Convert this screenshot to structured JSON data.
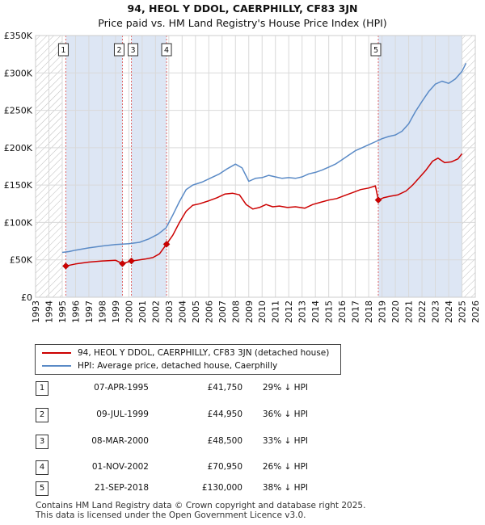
{
  "chart_data": {
    "type": "line",
    "title": "94, HEOL Y DDOL, CAERPHILLY, CF83 3JN",
    "subtitle": "Price paid vs. HM Land Registry's House Price Index (HPI)",
    "xlim": [
      1993,
      2026
    ],
    "ylim": [
      0,
      350000
    ],
    "x_ticks": [
      "1993",
      "1994",
      "1995",
      "1996",
      "1997",
      "1998",
      "1999",
      "2000",
      "2001",
      "2002",
      "2003",
      "2004",
      "2005",
      "2006",
      "2007",
      "2008",
      "2009",
      "2010",
      "2011",
      "2012",
      "2013",
      "2014",
      "2015",
      "2016",
      "2017",
      "2018",
      "2019",
      "2020",
      "2021",
      "2022",
      "2023",
      "2024",
      "2025",
      "2026"
    ],
    "y_ticks": [
      {
        "value": 0,
        "label": "£0"
      },
      {
        "value": 50000,
        "label": "£50K"
      },
      {
        "value": 100000,
        "label": "£100K"
      },
      {
        "value": 150000,
        "label": "£150K"
      },
      {
        "value": 200000,
        "label": "£200K"
      },
      {
        "value": 250000,
        "label": "£250K"
      },
      {
        "value": 300000,
        "label": "£300K"
      },
      {
        "value": 350000,
        "label": "£350K"
      }
    ],
    "grid": true,
    "colors": {
      "property": "#cc0000",
      "hpi": "#5a8ac6",
      "shade": "#dde6f4",
      "vline": "#e06666",
      "hatch": "#bbbbbb"
    },
    "hatched_ranges": [
      [
        1993,
        1995.0
      ],
      [
        2025.0,
        2026
      ]
    ],
    "shaded_ranges": [
      [
        1995.27,
        1999.52
      ],
      [
        2000.19,
        2002.83
      ],
      [
        2018.72,
        2025.0
      ]
    ],
    "series": [
      {
        "name": "94, HEOL Y DDOL, CAERPHILLY, CF83 3JN (detached house)",
        "color": "#cc0000",
        "points": [
          [
            1995.27,
            41750
          ],
          [
            1995.6,
            43000
          ],
          [
            1996.0,
            44500
          ],
          [
            1997.0,
            47000
          ],
          [
            1998.0,
            48500
          ],
          [
            1999.0,
            49500
          ],
          [
            1999.52,
            44950
          ],
          [
            1999.9,
            47000
          ],
          [
            2000.19,
            48500
          ],
          [
            2000.6,
            49500
          ],
          [
            2001.2,
            51000
          ],
          [
            2001.8,
            53000
          ],
          [
            2002.3,
            58000
          ],
          [
            2002.83,
            70950
          ],
          [
            2003.3,
            83000
          ],
          [
            2003.8,
            100000
          ],
          [
            2004.3,
            115000
          ],
          [
            2004.8,
            123000
          ],
          [
            2005.3,
            125000
          ],
          [
            2006.0,
            129000
          ],
          [
            2006.6,
            133000
          ],
          [
            2007.2,
            138000
          ],
          [
            2007.8,
            139000
          ],
          [
            2008.3,
            137000
          ],
          [
            2008.8,
            124000
          ],
          [
            2009.3,
            118000
          ],
          [
            2009.8,
            120000
          ],
          [
            2010.3,
            124000
          ],
          [
            2010.8,
            121000
          ],
          [
            2011.3,
            122000
          ],
          [
            2011.9,
            120000
          ],
          [
            2012.5,
            121000
          ],
          [
            2013.2,
            119000
          ],
          [
            2013.8,
            124000
          ],
          [
            2014.4,
            127000
          ],
          [
            2015.0,
            130000
          ],
          [
            2015.6,
            132000
          ],
          [
            2016.2,
            136000
          ],
          [
            2016.8,
            140000
          ],
          [
            2017.4,
            144000
          ],
          [
            2018.0,
            146000
          ],
          [
            2018.5,
            149000
          ],
          [
            2018.72,
            130000
          ],
          [
            2019.1,
            133000
          ],
          [
            2019.6,
            135000
          ],
          [
            2020.2,
            137000
          ],
          [
            2020.8,
            142000
          ],
          [
            2021.3,
            150000
          ],
          [
            2021.8,
            160000
          ],
          [
            2022.3,
            170000
          ],
          [
            2022.8,
            182000
          ],
          [
            2023.2,
            186000
          ],
          [
            2023.7,
            180000
          ],
          [
            2024.2,
            181000
          ],
          [
            2024.7,
            185000
          ],
          [
            2025.0,
            192000
          ]
        ]
      },
      {
        "name": "HPI: Average price, detached house, Caerphilly",
        "color": "#5a8ac6",
        "points": [
          [
            1995.0,
            60000
          ],
          [
            1995.5,
            61000
          ],
          [
            1996.0,
            63000
          ],
          [
            1997.0,
            66000
          ],
          [
            1998.0,
            68500
          ],
          [
            1999.0,
            70500
          ],
          [
            2000.0,
            71500
          ],
          [
            2000.8,
            73500
          ],
          [
            2001.5,
            78000
          ],
          [
            2002.2,
            84500
          ],
          [
            2002.8,
            93000
          ],
          [
            2003.3,
            110000
          ],
          [
            2003.8,
            128000
          ],
          [
            2004.3,
            144000
          ],
          [
            2004.8,
            150000
          ],
          [
            2005.5,
            154000
          ],
          [
            2006.2,
            160000
          ],
          [
            2006.8,
            165000
          ],
          [
            2007.4,
            172000
          ],
          [
            2008.0,
            178000
          ],
          [
            2008.5,
            173000
          ],
          [
            2009.0,
            155000
          ],
          [
            2009.5,
            159000
          ],
          [
            2010.0,
            160000
          ],
          [
            2010.5,
            163000
          ],
          [
            2011.0,
            161000
          ],
          [
            2011.5,
            159000
          ],
          [
            2012.0,
            160000
          ],
          [
            2012.5,
            159000
          ],
          [
            2013.0,
            161000
          ],
          [
            2013.5,
            165000
          ],
          [
            2014.0,
            167000
          ],
          [
            2014.5,
            170000
          ],
          [
            2015.0,
            174000
          ],
          [
            2015.5,
            178000
          ],
          [
            2016.0,
            184000
          ],
          [
            2016.5,
            190000
          ],
          [
            2017.0,
            196000
          ],
          [
            2017.5,
            200000
          ],
          [
            2018.0,
            204000
          ],
          [
            2018.5,
            208000
          ],
          [
            2019.0,
            212000
          ],
          [
            2019.5,
            215000
          ],
          [
            2020.0,
            217000
          ],
          [
            2020.5,
            222000
          ],
          [
            2021.0,
            232000
          ],
          [
            2021.5,
            248000
          ],
          [
            2022.0,
            262000
          ],
          [
            2022.5,
            275000
          ],
          [
            2023.0,
            285000
          ],
          [
            2023.5,
            289000
          ],
          [
            2024.0,
            286000
          ],
          [
            2024.5,
            292000
          ],
          [
            2025.0,
            302000
          ],
          [
            2025.3,
            313000
          ]
        ]
      }
    ],
    "sales": [
      {
        "label": "1",
        "x": 1995.27,
        "y": 41750
      },
      {
        "label": "2",
        "x": 1999.52,
        "y": 44950
      },
      {
        "label": "3",
        "x": 2000.19,
        "y": 48500
      },
      {
        "label": "4",
        "x": 2002.83,
        "y": 70950
      },
      {
        "label": "5",
        "x": 2018.72,
        "y": 130000
      }
    ]
  },
  "legend": {
    "property_label": "94, HEOL Y DDOL, CAERPHILLY, CF83 3JN (detached house)",
    "hpi_label": "HPI: Average price, detached house, Caerphilly"
  },
  "sales_table": [
    {
      "num": "1",
      "date": "07-APR-1995",
      "price": "£41,750",
      "hpi": "29% ↓ HPI"
    },
    {
      "num": "2",
      "date": "09-JUL-1999",
      "price": "£44,950",
      "hpi": "36% ↓ HPI"
    },
    {
      "num": "3",
      "date": "08-MAR-2000",
      "price": "£48,500",
      "hpi": "33% ↓ HPI"
    },
    {
      "num": "4",
      "date": "01-NOV-2002",
      "price": "£70,950",
      "hpi": "26% ↓ HPI"
    },
    {
      "num": "5",
      "date": "21-SEP-2018",
      "price": "£130,000",
      "hpi": "38% ↓ HPI"
    }
  ],
  "footer": {
    "line1": "Contains HM Land Registry data © Crown copyright and database right 2025.",
    "line2": "This data is licensed under the Open Government Licence v3.0."
  }
}
